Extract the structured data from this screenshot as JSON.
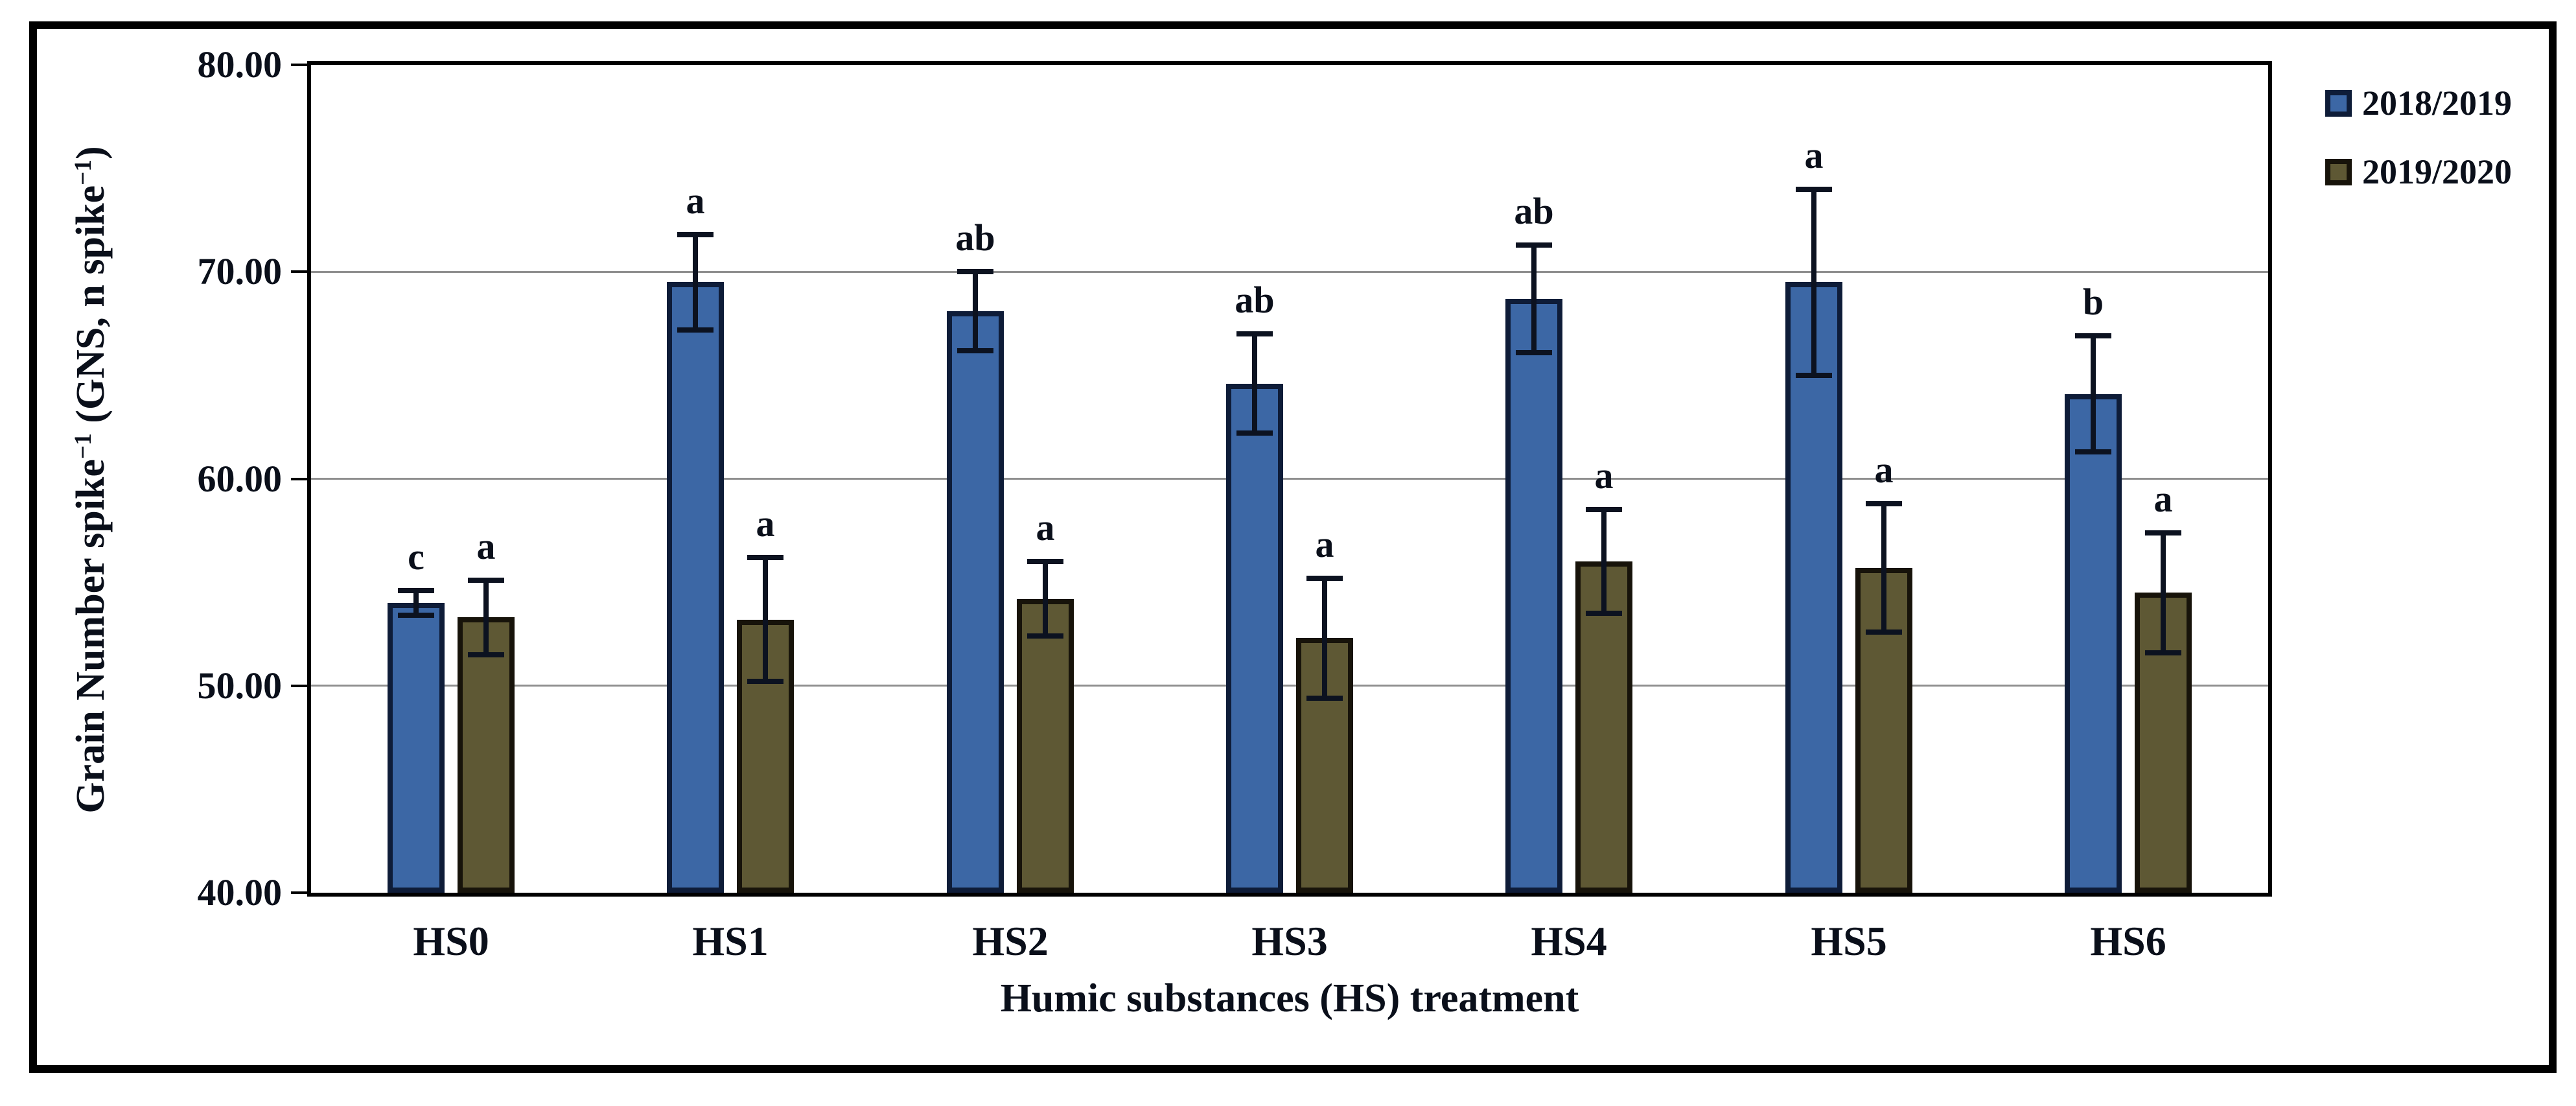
{
  "figure": {
    "background": "#ffffff",
    "border_color": "#000000"
  },
  "chart_data": {
    "type": "bar",
    "title": "",
    "xlabel": "Humic substances (HS) treatment",
    "ylabel": "Grain Number spike−1 (GNS, n spike−1)",
    "ylabel_parts": [
      {
        "text": "Grain Number spike",
        "sup": false
      },
      {
        "text": "−1",
        "sup": true
      },
      {
        "text": " (GNS, n spike",
        "sup": false
      },
      {
        "text": "−1",
        "sup": true
      },
      {
        "text": ")",
        "sup": false
      }
    ],
    "categories": [
      "HS0",
      "HS1",
      "HS2",
      "HS3",
      "HS4",
      "HS5",
      "HS6"
    ],
    "series": [
      {
        "name": "2018/2019",
        "color": "#3c67a5",
        "border_color": "#0e1c38",
        "values": [
          54.0,
          69.5,
          68.1,
          64.6,
          68.7,
          69.5,
          64.1
        ],
        "errors": [
          0.6,
          2.3,
          1.9,
          2.4,
          2.6,
          4.5,
          2.8
        ],
        "letters": [
          "c",
          "a",
          "ab",
          "ab",
          "ab",
          "a",
          "b"
        ]
      },
      {
        "name": "2019/2020",
        "color": "#5e5834",
        "border_color": "#17130a",
        "values": [
          53.3,
          53.2,
          54.2,
          52.3,
          56.0,
          55.7,
          54.5
        ],
        "errors": [
          1.8,
          3.0,
          1.8,
          2.9,
          2.5,
          3.1,
          2.9
        ],
        "letters": [
          "a",
          "a",
          "a",
          "a",
          "a",
          "a",
          "a"
        ]
      }
    ],
    "ylim": [
      40,
      80
    ],
    "yticks": [
      "80.00",
      "70.00",
      "60.00",
      "50.00",
      "40.00"
    ],
    "ytick_values": [
      80,
      70,
      60,
      50,
      40
    ],
    "grid": true,
    "gridline_color": "#8f8f8f",
    "error_bar_color": "#0c1220",
    "legend_position": "outside-top-right"
  }
}
